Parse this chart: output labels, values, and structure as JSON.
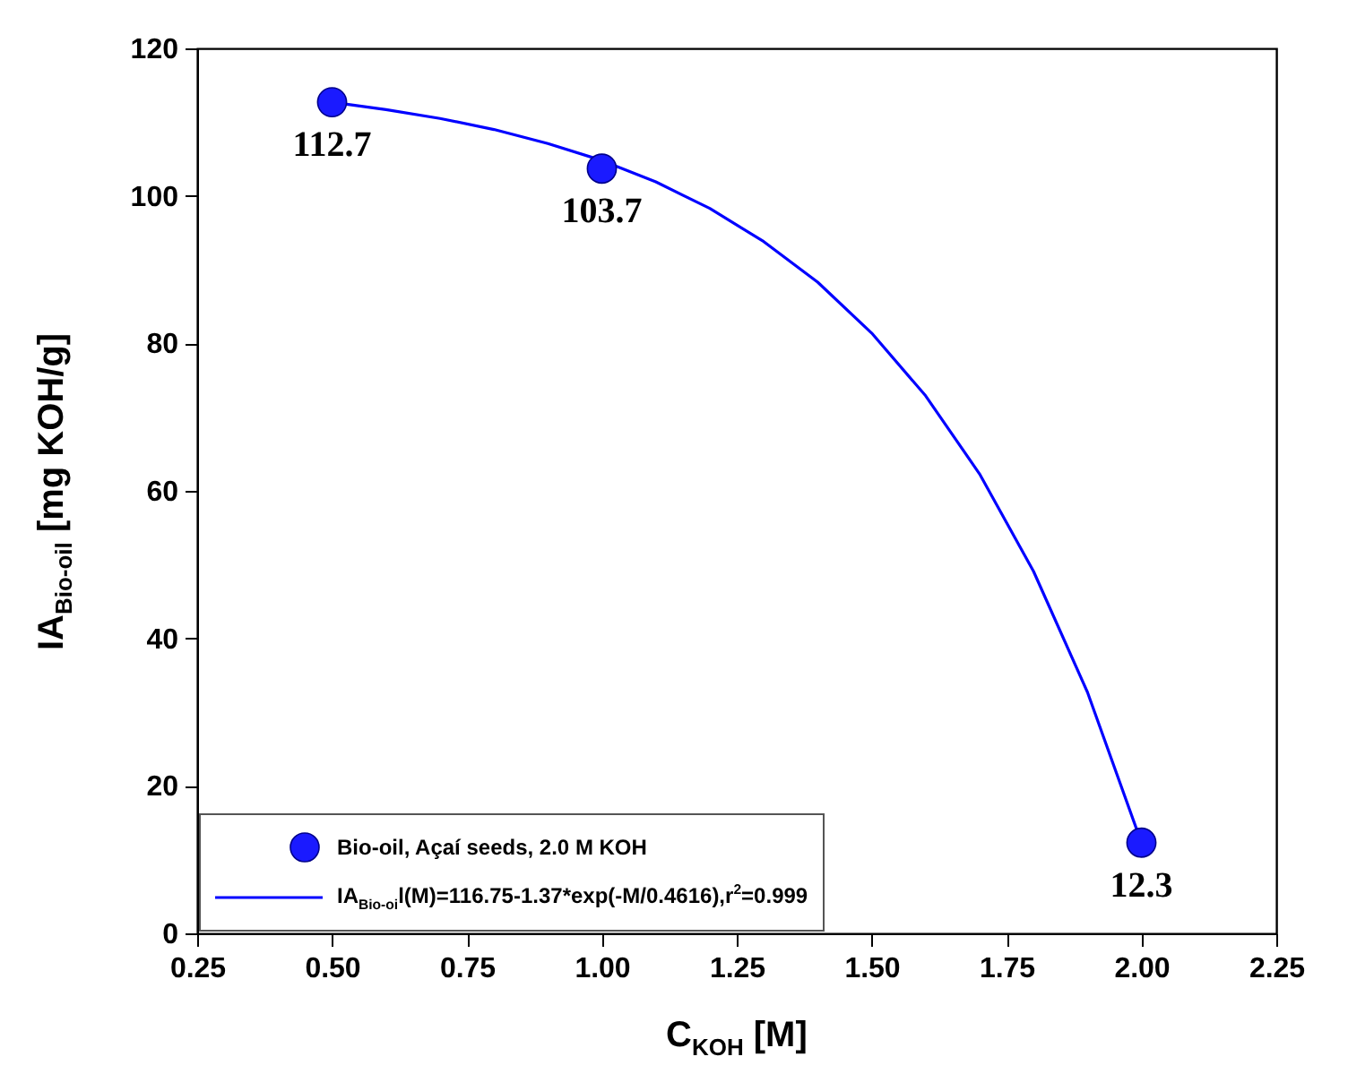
{
  "chart_data": {
    "type": "scatter",
    "xlabel": "C$_{KOH}$ [M]",
    "ylabel": "IA$_{Bio-oil}$ [mg KOH/g]",
    "xlim": [
      0.25,
      2.25
    ],
    "ylim": [
      0,
      120
    ],
    "xticks": [
      {
        "value": 0.25,
        "label": "0.25"
      },
      {
        "value": 0.5,
        "label": "0.50"
      },
      {
        "value": 0.75,
        "label": "0.75"
      },
      {
        "value": 1,
        "label": "1.00"
      },
      {
        "value": 1.25,
        "label": "1.25"
      },
      {
        "value": 1.5,
        "label": "1.50"
      },
      {
        "value": 1.75,
        "label": "1.75"
      },
      {
        "value": 2,
        "label": "2.00"
      },
      {
        "value": 2.25,
        "label": "2.25"
      }
    ],
    "yticks": [
      0,
      20,
      40,
      60,
      80,
      100,
      120
    ],
    "grid": false,
    "legend": "bottom left",
    "series": [
      {
        "name": "Bio-oil, Açaí seeds, 2.0 M KOH",
        "marker": "circle",
        "color": "#1a1aff",
        "x": [
          0.5,
          1,
          2
        ],
        "values": [
          112.7,
          103.7,
          12.3
        ],
        "value_labels": [
          "112.7",
          "103.7",
          "12.3"
        ]
      },
      {
        "name": "IA$_{Bio-oi}$l(M)=116.75-1.37*exp(-M/0.4616),r$^{2}$=0.999",
        "type": "line",
        "color": "#0000ff",
        "x": [
          0.5,
          0.6,
          0.7,
          0.8,
          0.9,
          1.0,
          1.1,
          1.2,
          1.3,
          1.4,
          1.5,
          1.6,
          1.7,
          1.8,
          1.9,
          2.0
        ],
        "values": [
          112.7,
          111.7,
          110.5,
          109.0,
          107.1,
          104.8,
          101.9,
          98.3,
          93.8,
          88.3,
          81.4,
          72.9,
          62.3,
          49.1,
          32.7,
          12.3
        ]
      }
    ]
  }
}
